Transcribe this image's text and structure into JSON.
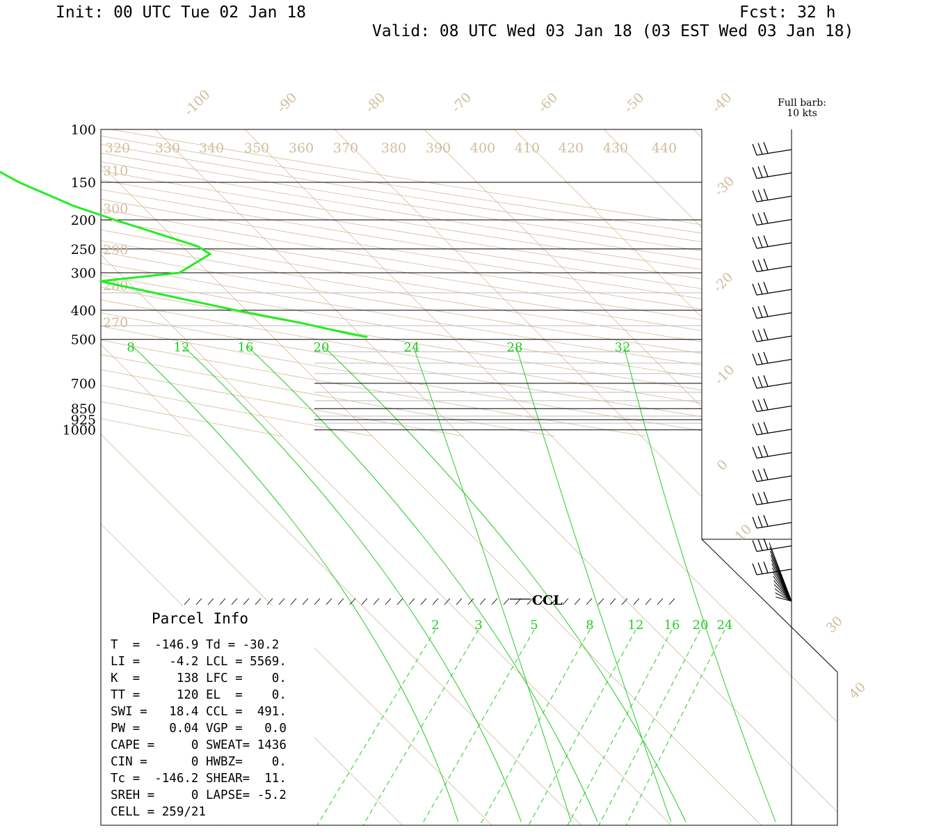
{
  "header": {
    "init": "Init: 00 UTC Tue 02 Jan 18",
    "fcst": "Fcst:   32 h",
    "valid": "Valid: 08 UTC Wed 03 Jan 18 (03 EST Wed 03 Jan 18)"
  },
  "chart_data": {
    "type": "line",
    "subtype": "skew-t log-p sounding",
    "pressure_labels": [
      "100",
      "150",
      "200",
      "250",
      "300",
      "400",
      "500",
      "700",
      "850",
      "925",
      "1000"
    ],
    "pressure_levels": [
      100,
      150,
      200,
      250,
      300,
      400,
      500,
      700,
      850,
      925,
      1000
    ],
    "isotherm_labels": [
      {
        "t": -100,
        "text": "-100"
      },
      {
        "t": -90,
        "text": "-90"
      },
      {
        "t": -80,
        "text": "-80"
      },
      {
        "t": -70,
        "text": "-70"
      },
      {
        "t": -60,
        "text": "-60"
      },
      {
        "t": -50,
        "text": "-50"
      },
      {
        "t": -40,
        "text": "-40"
      },
      {
        "t": -30,
        "text": "-30"
      },
      {
        "t": -20,
        "text": "-20"
      },
      {
        "t": -10,
        "text": "-10"
      },
      {
        "t": 0,
        "text": "0"
      },
      {
        "t": 10,
        "text": "10"
      },
      {
        "t": 30,
        "text": "30"
      },
      {
        "t": 40,
        "text": "40"
      }
    ],
    "theta_labels_top": [
      "320",
      "330",
      "340",
      "350",
      "360",
      "370",
      "380",
      "390",
      "400",
      "410",
      "420",
      "430",
      "440"
    ],
    "theta_labels_left": [
      {
        "text": "310",
        "p": 137
      },
      {
        "text": "300",
        "p": 183
      },
      {
        "text": "290",
        "p": 251
      },
      {
        "text": "280",
        "p": 330
      },
      {
        "text": "270",
        "p": 438
      }
    ],
    "thetae_labels": [
      "8",
      "12",
      "16",
      "20",
      "24",
      "28",
      "32"
    ],
    "mixing_ratio_labels": [
      "2",
      "3",
      "5",
      "8",
      "12",
      "16",
      "20",
      "24"
    ],
    "temperature_profile": [
      {
        "p": 100,
        "t": -38.9
      },
      {
        "p": 125,
        "t": -33.5
      },
      {
        "p": 150,
        "t": -31.3
      },
      {
        "p": 180,
        "t": -27.8
      },
      {
        "p": 200,
        "t": -24.8
      },
      {
        "p": 245,
        "t": -18.5
      },
      {
        "p": 260,
        "t": -18.0
      },
      {
        "p": 300,
        "t": -23.5
      },
      {
        "p": 320,
        "t": -33.3
      },
      {
        "p": 400,
        "t": -21.4
      },
      {
        "p": 440,
        "t": -15.6
      },
      {
        "p": 480,
        "t": -11.2
      },
      {
        "p": 491,
        "t": -9.7
      }
    ],
    "ccl_label": "CCL",
    "wind_legend": {
      "line1": "Full barb:",
      "line2": "10 kts"
    },
    "parcel_info": {
      "title": "Parcel Info",
      "rows": [
        "T  =  -146.9 Td = -30.2",
        "LI =    -4.2 LCL = 5569.",
        "K  =     138 LFC =    0.",
        "TT =     120 EL  =    0.",
        "SWI =   18.4 CCL =  491.",
        "PW =    0.04 VGP =   0.0",
        "CAPE =     0 SWEAT= 1436",
        "CIN =      0 HWBZ=    0.",
        "Tc =  -146.2 SHEAR=  11.",
        "SREH =     0 LAPSE= -5.2",
        "CELL = 259/21"
      ]
    }
  },
  "colors": {
    "grid_tan": "#d2bc9c",
    "isobar_gray": "#bbbbbb",
    "green": "#22cc22",
    "profile_green": "#22ee22",
    "black": "#000000"
  }
}
